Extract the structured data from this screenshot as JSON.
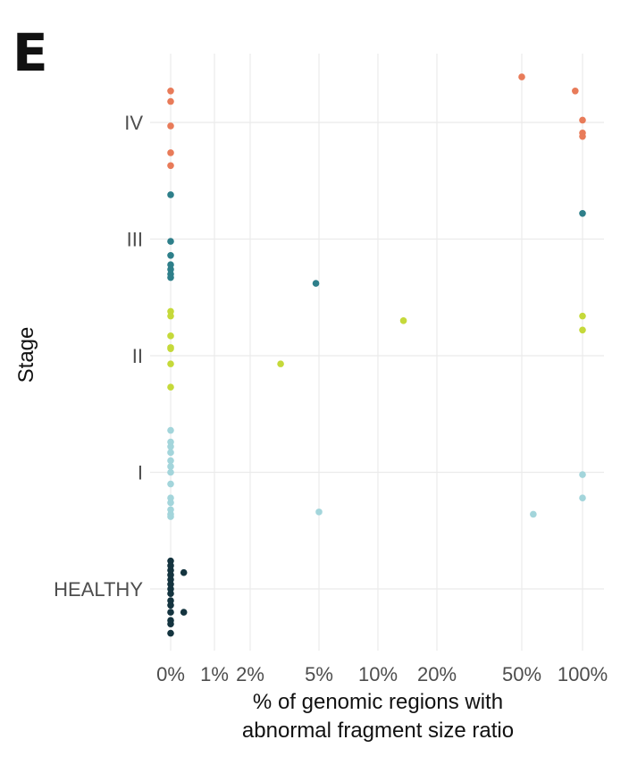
{
  "panel_label": "E",
  "chart_data": {
    "type": "scatter",
    "xlabel_lines": [
      "% of genomic regions with",
      "abnormal fragment size ratio"
    ],
    "ylabel": "Stage",
    "x_ticks": [
      {
        "value": 0,
        "label": "0%"
      },
      {
        "value": 1,
        "label": "1%"
      },
      {
        "value": 2,
        "label": "2%"
      },
      {
        "value": 5,
        "label": "5%"
      },
      {
        "value": 10,
        "label": "10%"
      },
      {
        "value": 20,
        "label": "20%"
      },
      {
        "value": 50,
        "label": "50%"
      },
      {
        "value": 100,
        "label": "100%"
      }
    ],
    "x_scale": "pseudo-log (percent)",
    "categories": [
      "HEALTHY",
      "I",
      "II",
      "III",
      "IV"
    ],
    "grid": true,
    "legend": "none",
    "series": [
      {
        "category": "HEALTHY",
        "color": "#14343f",
        "points": [
          {
            "x": 0,
            "y": 0.24
          },
          {
            "x": 0,
            "y": 0.2
          },
          {
            "x": 0,
            "y": 0.16
          },
          {
            "x": 0,
            "y": 0.12
          },
          {
            "x": 0,
            "y": 0.08
          },
          {
            "x": 0,
            "y": 0.04
          },
          {
            "x": 0,
            "y": 0.0
          },
          {
            "x": 0,
            "y": -0.04
          },
          {
            "x": 0,
            "y": -0.1
          },
          {
            "x": 0,
            "y": -0.14
          },
          {
            "x": 0,
            "y": -0.2
          },
          {
            "x": 0,
            "y": -0.27
          },
          {
            "x": 0,
            "y": -0.3
          },
          {
            "x": 0,
            "y": -0.38
          },
          {
            "x": 0.3,
            "y": 0.14
          },
          {
            "x": 0.3,
            "y": -0.2
          }
        ]
      },
      {
        "category": "I",
        "color": "#a3d5db",
        "points": [
          {
            "x": 0,
            "y": 0.36
          },
          {
            "x": 0,
            "y": 0.26
          },
          {
            "x": 0,
            "y": 0.22
          },
          {
            "x": 0,
            "y": 0.17
          },
          {
            "x": 0,
            "y": 0.1
          },
          {
            "x": 0,
            "y": 0.05
          },
          {
            "x": 0,
            "y": 0.0
          },
          {
            "x": 0,
            "y": -0.1
          },
          {
            "x": 0,
            "y": -0.22
          },
          {
            "x": 0,
            "y": -0.26
          },
          {
            "x": 0,
            "y": -0.32
          },
          {
            "x": 0,
            "y": -0.36
          },
          {
            "x": 0,
            "y": -0.38
          },
          {
            "x": 5,
            "y": -0.34
          },
          {
            "x": 57,
            "y": -0.36
          },
          {
            "x": 100,
            "y": -0.02
          },
          {
            "x": 100,
            "y": -0.22
          }
        ]
      },
      {
        "category": "II",
        "color": "#c5d93a",
        "points": [
          {
            "x": 0,
            "y": 0.38
          },
          {
            "x": 0,
            "y": 0.34
          },
          {
            "x": 0,
            "y": 0.17
          },
          {
            "x": 0,
            "y": 0.07
          },
          {
            "x": 0,
            "y": 0.06
          },
          {
            "x": 0,
            "y": -0.07
          },
          {
            "x": 0,
            "y": -0.27
          },
          {
            "x": 3,
            "y": -0.07
          },
          {
            "x": 13.5,
            "y": 0.3
          },
          {
            "x": 100,
            "y": 0.34
          },
          {
            "x": 100,
            "y": 0.22
          }
        ]
      },
      {
        "category": "III",
        "color": "#2e7f8a",
        "points": [
          {
            "x": 0,
            "y": 0.38
          },
          {
            "x": 0,
            "y": -0.02
          },
          {
            "x": 0,
            "y": -0.14
          },
          {
            "x": 0,
            "y": -0.22
          },
          {
            "x": 0,
            "y": -0.26
          },
          {
            "x": 0,
            "y": -0.3
          },
          {
            "x": 0,
            "y": -0.33
          },
          {
            "x": 4.8,
            "y": -0.38
          },
          {
            "x": 100,
            "y": 0.22
          }
        ]
      },
      {
        "category": "IV",
        "color": "#e87b59",
        "points": [
          {
            "x": 0,
            "y": 0.27
          },
          {
            "x": 0,
            "y": 0.18
          },
          {
            "x": 0,
            "y": -0.03
          },
          {
            "x": 0,
            "y": -0.26
          },
          {
            "x": 0,
            "y": -0.37
          },
          {
            "x": 50,
            "y": 0.39
          },
          {
            "x": 92,
            "y": 0.27
          },
          {
            "x": 100,
            "y": 0.02
          },
          {
            "x": 100,
            "y": -0.09
          },
          {
            "x": 100,
            "y": -0.12
          }
        ]
      }
    ]
  }
}
